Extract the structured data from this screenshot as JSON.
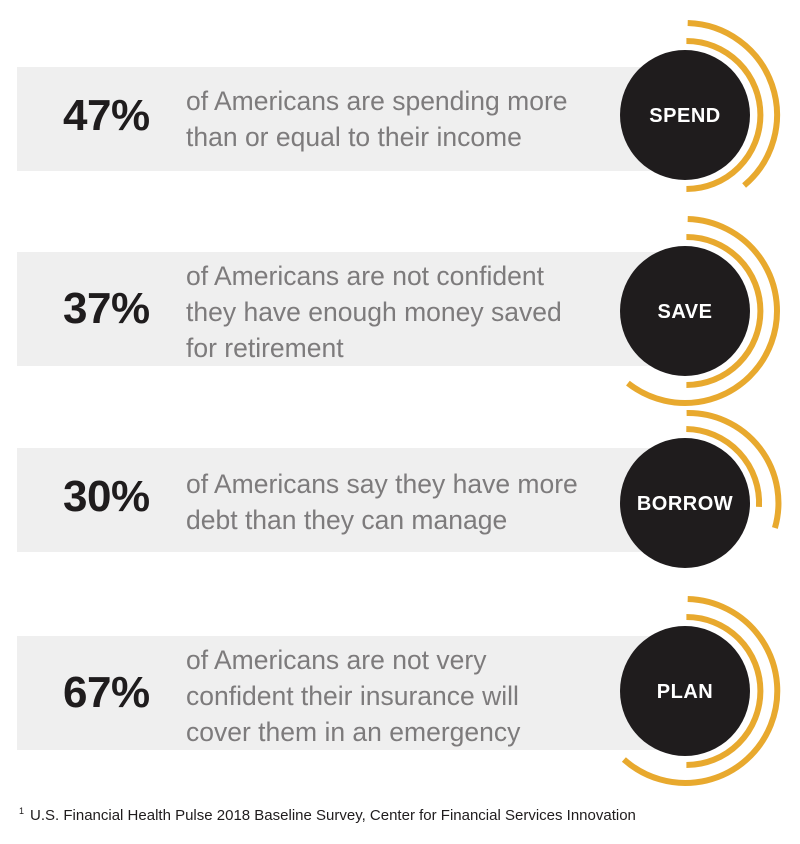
{
  "colors": {
    "band": "#efefef",
    "circle": "#1f1c1d",
    "accent": "#e8a92e",
    "percent": "#1f1c1d",
    "description": "#7d7b7c"
  },
  "cards": [
    {
      "percent": "47%",
      "lines": [
        "of Americans are spending more",
        "than or equal to their income"
      ],
      "label": "SPEND"
    },
    {
      "percent": "37%",
      "lines": [
        "of Americans are not confident",
        "they have enough money saved",
        "for retirement"
      ],
      "label": "SAVE"
    },
    {
      "percent": "30%",
      "lines": [
        "of Americans say they have more",
        "debt than they can manage"
      ],
      "label": "BORROW"
    },
    {
      "percent": "67%",
      "lines": [
        "of Americans are not very",
        "confident their insurance will",
        "cover them in an emergency"
      ],
      "label": "PLAN"
    }
  ],
  "footnote": {
    "marker": "1",
    "text": "U.S. Financial Health Pulse 2018 Baseline Survey, Center for Financial Services Innovation"
  }
}
